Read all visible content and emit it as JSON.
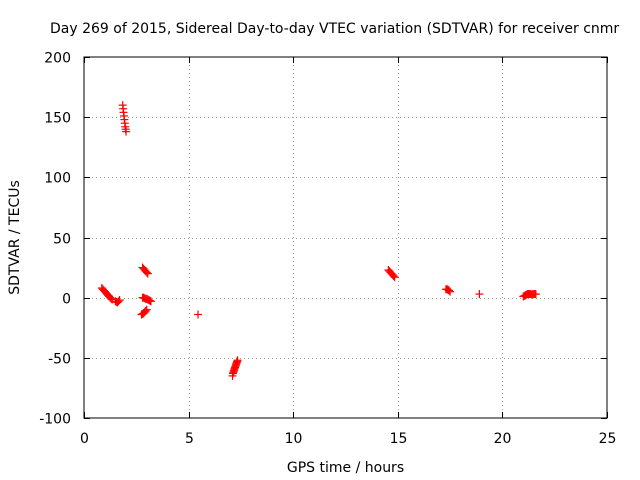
{
  "chart_data": {
    "type": "scatter",
    "title": "Day 269 of 2015, Sidereal Day-to-day VTEC variation (SDTVAR) for receiver cnmr",
    "xlabel": "GPS time / hours",
    "ylabel": "SDTVAR / TECUs",
    "xlim": [
      0,
      25
    ],
    "ylim": [
      -100,
      200
    ],
    "x_ticks": [
      0,
      5,
      10,
      15,
      20,
      25
    ],
    "y_ticks": [
      -100,
      -50,
      0,
      50,
      100,
      150,
      200
    ],
    "grid": true,
    "marker": "plus",
    "series": [
      {
        "name": "SDTVAR",
        "color": "#ff0000",
        "points": [
          [
            0.85,
            8
          ],
          [
            0.9,
            7
          ],
          [
            0.95,
            6
          ],
          [
            1.0,
            5
          ],
          [
            1.05,
            4
          ],
          [
            1.1,
            3
          ],
          [
            1.15,
            2
          ],
          [
            1.2,
            1
          ],
          [
            1.25,
            0
          ],
          [
            1.3,
            -1
          ],
          [
            1.35,
            -1.5
          ],
          [
            1.5,
            -3
          ],
          [
            1.55,
            -3.5
          ],
          [
            1.6,
            -4
          ],
          [
            1.65,
            -3
          ],
          [
            1.7,
            -2
          ],
          [
            1.85,
            160
          ],
          [
            1.87,
            157
          ],
          [
            1.89,
            154
          ],
          [
            1.91,
            151
          ],
          [
            1.93,
            148
          ],
          [
            1.95,
            145
          ],
          [
            1.97,
            142
          ],
          [
            1.99,
            140
          ],
          [
            2.01,
            138
          ],
          [
            2.8,
            25
          ],
          [
            2.85,
            24
          ],
          [
            2.9,
            23
          ],
          [
            2.95,
            22
          ],
          [
            3.0,
            21
          ],
          [
            3.05,
            20
          ],
          [
            2.8,
            0
          ],
          [
            2.85,
            0
          ],
          [
            2.9,
            -0.5
          ],
          [
            2.95,
            -1
          ],
          [
            3.0,
            -1
          ],
          [
            3.05,
            -1.5
          ],
          [
            3.1,
            -2
          ],
          [
            3.15,
            -2.5
          ],
          [
            3.2,
            -3
          ],
          [
            2.75,
            -14
          ],
          [
            2.8,
            -13.5
          ],
          [
            2.85,
            -13
          ],
          [
            2.9,
            -12
          ],
          [
            2.95,
            -11
          ],
          [
            3.0,
            -10
          ],
          [
            5.45,
            -14
          ],
          [
            7.1,
            -65
          ],
          [
            7.12,
            -63
          ],
          [
            7.14,
            -62
          ],
          [
            7.16,
            -61
          ],
          [
            7.18,
            -60
          ],
          [
            7.2,
            -59
          ],
          [
            7.22,
            -58
          ],
          [
            7.24,
            -57
          ],
          [
            7.26,
            -56
          ],
          [
            7.28,
            -55
          ],
          [
            7.3,
            -54
          ],
          [
            7.32,
            -53
          ],
          [
            7.34,
            -52
          ],
          [
            14.55,
            23
          ],
          [
            14.6,
            22
          ],
          [
            14.65,
            21
          ],
          [
            14.7,
            20
          ],
          [
            14.75,
            19
          ],
          [
            14.8,
            18
          ],
          [
            14.85,
            17
          ],
          [
            17.3,
            7
          ],
          [
            17.35,
            7
          ],
          [
            17.4,
            6.5
          ],
          [
            17.45,
            6
          ],
          [
            17.5,
            5
          ],
          [
            18.9,
            3
          ],
          [
            21.0,
            1
          ],
          [
            21.05,
            1.5
          ],
          [
            21.1,
            2
          ],
          [
            21.15,
            2.5
          ],
          [
            21.2,
            3
          ],
          [
            21.25,
            3
          ],
          [
            21.3,
            3
          ],
          [
            21.35,
            3
          ],
          [
            21.4,
            2.5
          ],
          [
            21.45,
            3
          ],
          [
            21.5,
            3
          ],
          [
            21.55,
            3
          ],
          [
            21.6,
            3
          ]
        ]
      }
    ]
  }
}
